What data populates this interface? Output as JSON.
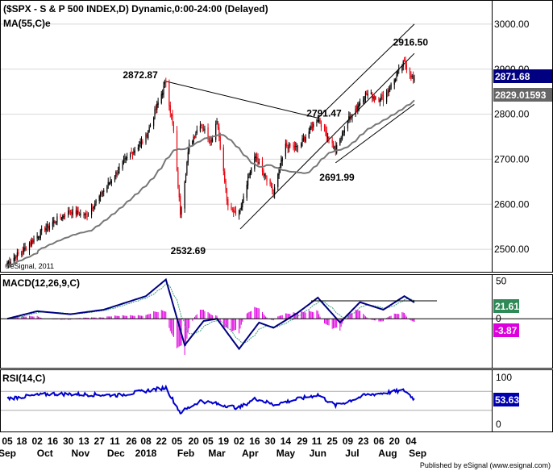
{
  "chart_data": {
    "type": "candlestick",
    "price": {
      "title": "($SPX - S & P 500 INDEX,D) Dynamic,0:00-24:00 (Delayed)",
      "ma_label": "MA(55,C)e",
      "watermark": "©eSignal, 2011",
      "ylim": [
        2450,
        3050
      ],
      "yticks": [
        "3000.00",
        "2900.00",
        "2800.00",
        "2700.00",
        "2600.00",
        "2500.00"
      ],
      "last_price": "2871.68",
      "ma_value": "2829.01593",
      "annotations": [
        "2872.87",
        "2916.50",
        "2791.47",
        "2691.99",
        "2532.69"
      ],
      "anchors": [
        {
          "date": "2017-09-05",
          "price": 2470
        },
        {
          "date": "2017-09-18",
          "price": 2495
        },
        {
          "date": "2017-10-02",
          "price": 2530
        },
        {
          "date": "2017-10-16",
          "price": 2560
        },
        {
          "date": "2017-11-01",
          "price": 2585
        },
        {
          "date": "2017-11-15",
          "price": 2575
        },
        {
          "date": "2017-11-28",
          "price": 2620
        },
        {
          "date": "2017-12-18",
          "price": 2690
        },
        {
          "date": "2018-01-08",
          "price": 2750
        },
        {
          "date": "2018-01-26",
          "price": 2872.87
        },
        {
          "date": "2018-02-02",
          "price": 2760
        },
        {
          "date": "2018-02-08",
          "price": 2581
        },
        {
          "date": "2018-02-16",
          "price": 2730
        },
        {
          "date": "2018-02-26",
          "price": 2780
        },
        {
          "date": "2018-03-08",
          "price": 2740
        },
        {
          "date": "2018-03-13",
          "price": 2790
        },
        {
          "date": "2018-03-23",
          "price": 2590
        },
        {
          "date": "2018-04-02",
          "price": 2581
        },
        {
          "date": "2018-04-10",
          "price": 2660
        },
        {
          "date": "2018-04-17",
          "price": 2706
        },
        {
          "date": "2018-04-23",
          "price": 2670
        },
        {
          "date": "2018-05-03",
          "price": 2625
        },
        {
          "date": "2018-05-14",
          "price": 2730
        },
        {
          "date": "2018-05-25",
          "price": 2725
        },
        {
          "date": "2018-06-12",
          "price": 2791.47
        },
        {
          "date": "2018-06-28",
          "price": 2720
        },
        {
          "date": "2018-07-10",
          "price": 2790
        },
        {
          "date": "2018-07-25",
          "price": 2845
        },
        {
          "date": "2018-08-10",
          "price": 2835
        },
        {
          "date": "2018-08-29",
          "price": 2915
        },
        {
          "date": "2018-09-07",
          "price": 2872
        }
      ]
    },
    "macd": {
      "label": "MACD(12,26,9,C)",
      "ylim": [
        -65,
        58
      ],
      "yticks": [
        "50",
        "0"
      ],
      "macd_value": "21.61",
      "hist_value": "-3.87",
      "anchors": [
        {
          "date": "2017-09-05",
          "macd": 0
        },
        {
          "date": "2017-10-02",
          "macd": 10
        },
        {
          "date": "2017-11-01",
          "macd": 6
        },
        {
          "date": "2017-12-01",
          "macd": 12
        },
        {
          "date": "2018-01-08",
          "macd": 30
        },
        {
          "date": "2018-01-26",
          "macd": 52
        },
        {
          "date": "2018-02-12",
          "macd": -35
        },
        {
          "date": "2018-03-01",
          "macd": -3
        },
        {
          "date": "2018-03-13",
          "macd": 0
        },
        {
          "date": "2018-04-02",
          "macd": -40
        },
        {
          "date": "2018-04-20",
          "macd": -5
        },
        {
          "date": "2018-05-03",
          "macd": -12
        },
        {
          "date": "2018-05-25",
          "macd": 8
        },
        {
          "date": "2018-06-12",
          "macd": 28
        },
        {
          "date": "2018-07-02",
          "macd": -5
        },
        {
          "date": "2018-07-20",
          "macd": 22
        },
        {
          "date": "2018-08-10",
          "macd": 12
        },
        {
          "date": "2018-08-29",
          "macd": 30
        },
        {
          "date": "2018-09-07",
          "macd": 21.61
        }
      ]
    },
    "rsi": {
      "label": "RSI(14,C)",
      "ylim": [
        -15,
        115
      ],
      "yticks": [
        "100",
        "0"
      ],
      "value": "53.63",
      "anchors": [
        {
          "date": "2017-09-05",
          "rsi": 55
        },
        {
          "date": "2017-10-15",
          "rsi": 65
        },
        {
          "date": "2017-12-15",
          "rsi": 62
        },
        {
          "date": "2018-01-26",
          "rsi": 78
        },
        {
          "date": "2018-02-08",
          "rsi": 25
        },
        {
          "date": "2018-02-26",
          "rsi": 50
        },
        {
          "date": "2018-04-02",
          "rsi": 35
        },
        {
          "date": "2018-04-17",
          "rsi": 55
        },
        {
          "date": "2018-05-03",
          "rsi": 42
        },
        {
          "date": "2018-06-12",
          "rsi": 63
        },
        {
          "date": "2018-06-28",
          "rsi": 40
        },
        {
          "date": "2018-07-25",
          "rsi": 62
        },
        {
          "date": "2018-08-29",
          "rsi": 72
        },
        {
          "date": "2018-09-07",
          "rsi": 53.63
        }
      ]
    },
    "x_axis": {
      "days": [
        {
          "date": "2017-09-05",
          "label": "05"
        },
        {
          "date": "2017-09-18",
          "label": "18"
        },
        {
          "date": "2017-10-02",
          "label": "02"
        },
        {
          "date": "2017-10-16",
          "label": "16"
        },
        {
          "date": "2017-10-30",
          "label": "30"
        },
        {
          "date": "2017-11-13",
          "label": "13"
        },
        {
          "date": "2017-11-27",
          "label": "27"
        },
        {
          "date": "2017-12-11",
          "label": "11"
        },
        {
          "date": "2017-12-26",
          "label": "26"
        },
        {
          "date": "2018-01-08",
          "label": "08"
        },
        {
          "date": "2018-01-22",
          "label": "22"
        },
        {
          "date": "2018-02-05",
          "label": "05"
        },
        {
          "date": "2018-02-20",
          "label": "20"
        },
        {
          "date": "2018-03-05",
          "label": "05"
        },
        {
          "date": "2018-03-19",
          "label": "19"
        },
        {
          "date": "2018-04-02",
          "label": "02"
        },
        {
          "date": "2018-04-16",
          "label": "16"
        },
        {
          "date": "2018-04-30",
          "label": "30"
        },
        {
          "date": "2018-05-14",
          "label": "14"
        },
        {
          "date": "2018-05-29",
          "label": "29"
        },
        {
          "date": "2018-06-11",
          "label": "11"
        },
        {
          "date": "2018-06-25",
          "label": "25"
        },
        {
          "date": "2018-07-09",
          "label": "09"
        },
        {
          "date": "2018-07-23",
          "label": "23"
        },
        {
          "date": "2018-08-06",
          "label": "06"
        },
        {
          "date": "2018-08-20",
          "label": "20"
        },
        {
          "date": "2018-09-04",
          "label": "04"
        }
      ],
      "months": [
        {
          "date": "2017-09-05",
          "label": "Sep"
        },
        {
          "date": "2017-10-09",
          "label": "Oct"
        },
        {
          "date": "2017-11-10",
          "label": "Nov"
        },
        {
          "date": "2017-12-12",
          "label": "Dec"
        },
        {
          "date": "2018-01-08",
          "label": "2018"
        },
        {
          "date": "2018-02-13",
          "label": "Feb"
        },
        {
          "date": "2018-03-13",
          "label": "Mar"
        },
        {
          "date": "2018-04-12",
          "label": "Apr"
        },
        {
          "date": "2018-05-14",
          "label": "May"
        },
        {
          "date": "2018-06-12",
          "label": "Jun"
        },
        {
          "date": "2018-07-13",
          "label": "Jul"
        },
        {
          "date": "2018-08-14",
          "label": "Aug"
        },
        {
          "date": "2018-09-10",
          "label": "Sep"
        }
      ]
    },
    "footer": "Published by eSignal (www.esignal.com)",
    "colors": {
      "up_candle": "#000000",
      "down_candle": "#e8000c",
      "ma_line": "#777777",
      "macd_line": "#000080",
      "signal_line": "#3aa37a",
      "histogram": "#e000e0",
      "rsi_line": "#0000cc",
      "last_price_box": "#000080",
      "ma_value_box": "#666666",
      "macd_value_box": "#2e8b57",
      "hist_value_box": "#dd00dd",
      "rsi_value_box": "#0000b0"
    }
  }
}
